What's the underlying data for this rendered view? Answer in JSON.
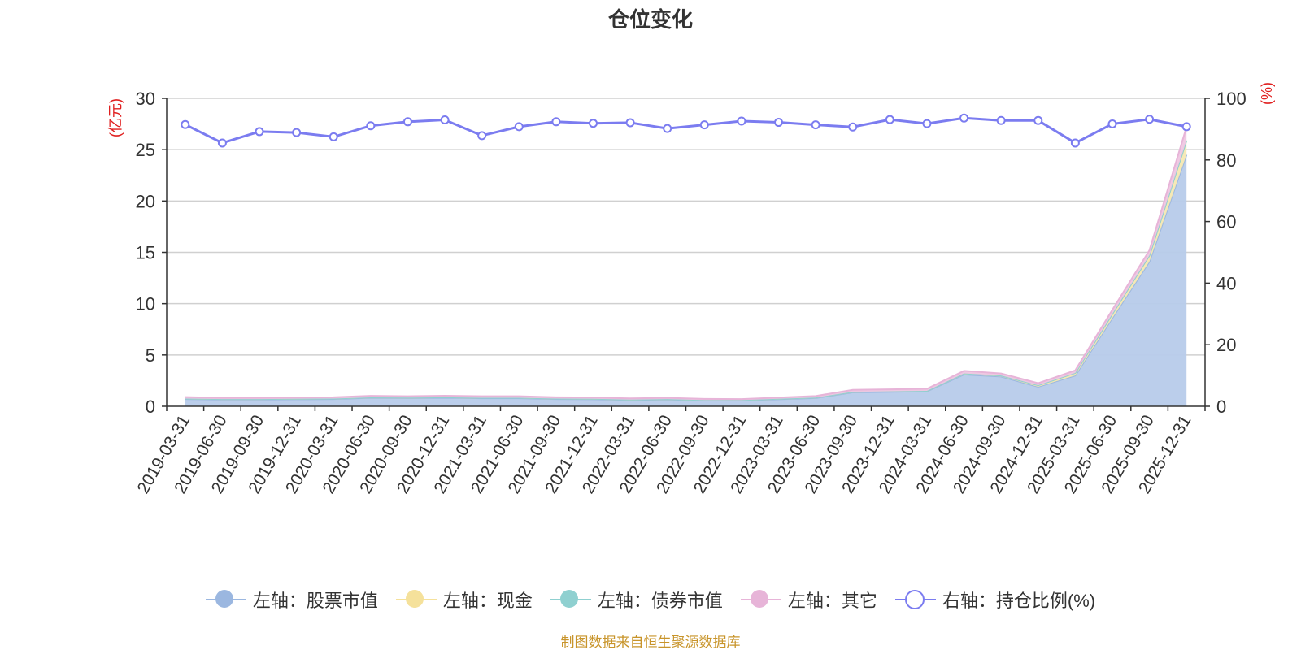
{
  "chart_data": {
    "type": "area",
    "title": "仓位变化",
    "ylabel_left": "(亿元)",
    "ylabel_right": "(%)",
    "ylim_left": [
      0,
      30
    ],
    "ylim_right": [
      0,
      100
    ],
    "yticks_left": [
      0,
      5,
      10,
      15,
      20,
      25,
      30
    ],
    "yticks_right": [
      0,
      20,
      40,
      60,
      80,
      100
    ],
    "grid": true,
    "legend_position": "bottom",
    "x": [
      "2019-03-31",
      "2019-06-30",
      "2019-09-30",
      "2019-12-31",
      "2020-03-31",
      "2020-06-30",
      "2020-09-30",
      "2020-12-31",
      "2021-03-31",
      "2021-06-30",
      "2021-09-30",
      "2021-12-31",
      "2022-03-31",
      "2022-06-30",
      "2022-09-30",
      "2022-12-31",
      "2023-03-31",
      "2023-06-30",
      "2023-09-30",
      "2023-12-31",
      "2024-03-31",
      "2024-06-30",
      "2024-09-30",
      "2024-12-31",
      "2025-03-31",
      "2025-06-30",
      "2025-09-30",
      "2025-12-31"
    ],
    "series": [
      {
        "name": "左轴：股票市值",
        "axis": "left",
        "stack": true,
        "color": "#9bb7e0",
        "fill": "#b7cbea",
        "values": [
          0.7,
          0.65,
          0.65,
          0.68,
          0.7,
          0.82,
          0.8,
          0.83,
          0.78,
          0.78,
          0.7,
          0.68,
          0.6,
          0.65,
          0.55,
          0.55,
          0.68,
          0.8,
          1.35,
          1.4,
          1.45,
          3.1,
          2.9,
          1.9,
          3.0,
          8.6,
          14.1,
          24.5
        ]
      },
      {
        "name": "左轴：现金",
        "axis": "left",
        "stack": true,
        "color": "#f5e19b",
        "fill": "#f5e8b2",
        "values": [
          0.05,
          0.05,
          0.05,
          0.05,
          0.05,
          0.05,
          0.05,
          0.05,
          0.05,
          0.05,
          0.05,
          0.05,
          0.05,
          0.05,
          0.05,
          0.05,
          0.05,
          0.05,
          0.05,
          0.05,
          0.05,
          0.1,
          0.1,
          0.15,
          0.25,
          0.4,
          0.6,
          1.4
        ]
      },
      {
        "name": "左轴：债券市值",
        "axis": "left",
        "stack": true,
        "color": "#8fd0d0",
        "fill": "#b8e2e2",
        "values": [
          0,
          0,
          0,
          0,
          0,
          0,
          0,
          0,
          0,
          0,
          0,
          0,
          0,
          0,
          0,
          0,
          0,
          0,
          0,
          0,
          0,
          0,
          0,
          0,
          0,
          0,
          0,
          0
        ]
      },
      {
        "name": "左轴：其它",
        "axis": "left",
        "stack": true,
        "color": "#e7b4d8",
        "fill": "#efc7e2",
        "values": [
          0.15,
          0.12,
          0.12,
          0.12,
          0.13,
          0.15,
          0.13,
          0.15,
          0.15,
          0.15,
          0.13,
          0.13,
          0.12,
          0.12,
          0.12,
          0.1,
          0.12,
          0.15,
          0.2,
          0.2,
          0.2,
          0.25,
          0.2,
          0.2,
          0.25,
          0.4,
          0.5,
          1.3
        ]
      },
      {
        "name": "右轴：持仓比例(%)",
        "axis": "right",
        "type": "line",
        "color": "#7b7cf0",
        "values": [
          91.5,
          85.5,
          89.2,
          88.9,
          87.5,
          91.1,
          92.4,
          93.0,
          87.9,
          90.8,
          92.4,
          91.9,
          92.1,
          90.2,
          91.4,
          92.6,
          92.2,
          91.4,
          90.7,
          93.1,
          91.8,
          93.6,
          92.8,
          92.8,
          85.5,
          91.7,
          93.2,
          90.8
        ]
      }
    ]
  },
  "source_note": "制图数据来自恒生聚源数据库"
}
